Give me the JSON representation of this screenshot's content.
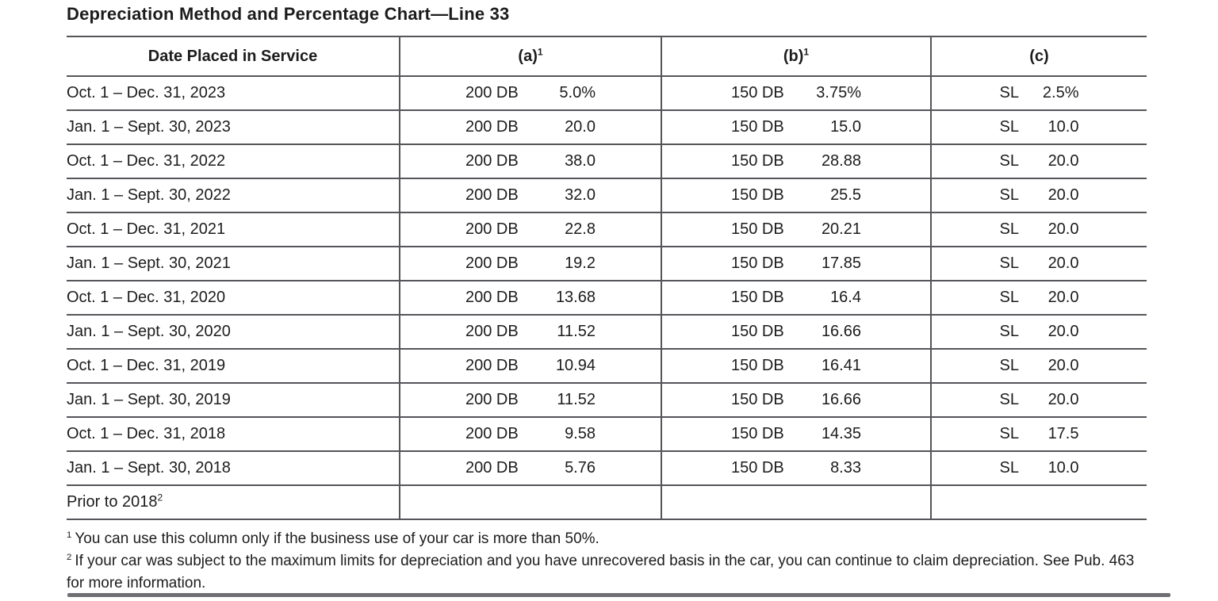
{
  "title": "Depreciation Method and Percentage Chart—Line 33",
  "table": {
    "header": {
      "date": "Date Placed in Service",
      "a_label": "(a)",
      "a_sup": "1",
      "b_label": "(b)",
      "b_sup": "1",
      "c_label": "(c)"
    },
    "rows": [
      {
        "date": "Oct. 1 – Dec. 31, 2023",
        "a_method": "200 DB",
        "a_value": "5.0%",
        "b_method": "150 DB",
        "b_value": "3.75%",
        "c_method": "SL",
        "c_value": "2.5%"
      },
      {
        "date": "Jan. 1 – Sept. 30, 2023",
        "a_method": "200 DB",
        "a_value": "20.0",
        "b_method": "150 DB",
        "b_value": "15.0",
        "c_method": "SL",
        "c_value": "10.0"
      },
      {
        "date": "Oct. 1 – Dec. 31, 2022",
        "a_method": "200 DB",
        "a_value": "38.0",
        "b_method": "150 DB",
        "b_value": "28.88",
        "c_method": "SL",
        "c_value": "20.0"
      },
      {
        "date": "Jan. 1 – Sept. 30, 2022",
        "a_method": "200 DB",
        "a_value": "32.0",
        "b_method": "150 DB",
        "b_value": "25.5",
        "c_method": "SL",
        "c_value": "20.0"
      },
      {
        "date": "Oct. 1 – Dec. 31, 2021",
        "a_method": "200 DB",
        "a_value": "22.8",
        "b_method": "150 DB",
        "b_value": "20.21",
        "c_method": "SL",
        "c_value": "20.0"
      },
      {
        "date": "Jan. 1 – Sept. 30, 2021",
        "a_method": "200 DB",
        "a_value": "19.2",
        "b_method": "150 DB",
        "b_value": "17.85",
        "c_method": "SL",
        "c_value": "20.0"
      },
      {
        "date": "Oct. 1 – Dec. 31, 2020",
        "a_method": "200 DB",
        "a_value": "13.68",
        "b_method": "150 DB",
        "b_value": "16.4",
        "c_method": "SL",
        "c_value": "20.0"
      },
      {
        "date": "Jan. 1 – Sept. 30, 2020",
        "a_method": "200 DB",
        "a_value": "11.52",
        "b_method": "150 DB",
        "b_value": "16.66",
        "c_method": "SL",
        "c_value": "20.0"
      },
      {
        "date": "Oct. 1 – Dec. 31, 2019",
        "a_method": "200 DB",
        "a_value": "10.94",
        "b_method": "150 DB",
        "b_value": "16.41",
        "c_method": "SL",
        "c_value": "20.0"
      },
      {
        "date": "Jan. 1 – Sept. 30, 2019",
        "a_method": "200 DB",
        "a_value": "11.52",
        "b_method": "150 DB",
        "b_value": "16.66",
        "c_method": "SL",
        "c_value": "20.0"
      },
      {
        "date": "Oct. 1 – Dec. 31, 2018",
        "a_method": "200 DB",
        "a_value": "9.58",
        "b_method": "150 DB",
        "b_value": "14.35",
        "c_method": "SL",
        "c_value": "17.5"
      },
      {
        "date": "Jan. 1 – Sept. 30, 2018",
        "a_method": "200 DB",
        "a_value": "5.76",
        "b_method": "150 DB",
        "b_value": "8.33",
        "c_method": "SL",
        "c_value": "10.0"
      },
      {
        "date": "Prior to 2018",
        "date_sup": "2"
      }
    ]
  },
  "footnotes": [
    {
      "marker": "1",
      "text": "You can use this column only if the business use of your car is more than 50%."
    },
    {
      "marker": "2",
      "text": "If your car was subject to the maximum limits for depreciation and you have unrecovered basis in the car, you can continue to claim depreciation. See Pub. 463 for more information."
    }
  ],
  "colors": {
    "rule": "#55555a",
    "text": "#1c1c1c",
    "bottom_bar": "#6e6e73"
  }
}
